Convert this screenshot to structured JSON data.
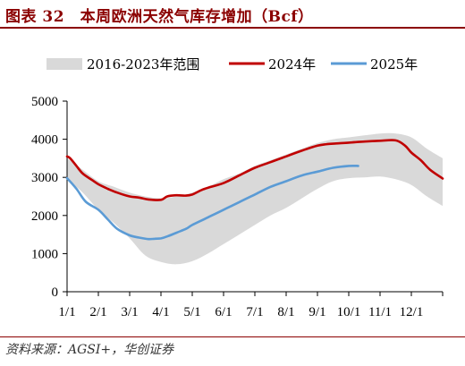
{
  "page": {
    "title": "图表 32　本周欧洲天然气库存增加（Bcf）",
    "source": "资料来源：AGSI+，华创证券"
  },
  "colors": {
    "title": "#8b0000",
    "band": "#d9d9d9",
    "series_2024": "#c00000",
    "series_2025": "#5b9bd5"
  },
  "chart_data": {
    "type": "line",
    "ylim": [
      0,
      5000
    ],
    "yticks": [
      0,
      1000,
      2000,
      3000,
      4000,
      5000
    ],
    "xlim": [
      0,
      12
    ],
    "xtick_labels": [
      "1/1",
      "2/1",
      "3/1",
      "4/1",
      "5/1",
      "6/1",
      "7/1",
      "8/1",
      "9/1",
      "10/1",
      "11/1",
      "12/1"
    ],
    "legend": {
      "position": "top",
      "entries": [
        "2016-2023年范围",
        "2024年",
        "2025年"
      ]
    },
    "band": {
      "name": "2016-2023年范围",
      "x": [
        0,
        0.5,
        1,
        1.5,
        2,
        2.5,
        3,
        3.5,
        4,
        4.5,
        5,
        5.5,
        6,
        6.5,
        7,
        7.5,
        8,
        8.5,
        9,
        9.5,
        10,
        10.5,
        11,
        11.5,
        12
      ],
      "upper": [
        3500,
        3200,
        2900,
        2750,
        2600,
        2500,
        2450,
        2500,
        2600,
        2750,
        2950,
        3100,
        3300,
        3450,
        3600,
        3750,
        3900,
        4000,
        4050,
        4100,
        4150,
        4150,
        4050,
        3750,
        3500
      ],
      "lower": [
        2950,
        2600,
        2150,
        1800,
        1400,
        950,
        780,
        720,
        800,
        1000,
        1250,
        1500,
        1750,
        2000,
        2200,
        2450,
        2700,
        2900,
        2980,
        3000,
        3020,
        2950,
        2800,
        2500,
        2250
      ]
    },
    "series": [
      {
        "name": "2024年",
        "x": [
          0,
          0.1,
          0.3,
          0.5,
          0.8,
          1,
          1.3,
          1.6,
          2,
          2.3,
          2.6,
          3,
          3.2,
          3.5,
          3.8,
          4,
          4.3,
          4.6,
          5,
          5.5,
          6,
          6.5,
          7,
          7.5,
          8,
          8.3,
          8.6,
          9,
          9.5,
          10,
          10.5,
          10.8,
          11,
          11.3,
          11.6,
          12
        ],
        "y": [
          3550,
          3500,
          3300,
          3100,
          2930,
          2820,
          2700,
          2600,
          2500,
          2470,
          2420,
          2410,
          2500,
          2530,
          2520,
          2550,
          2670,
          2750,
          2850,
          3050,
          3250,
          3400,
          3550,
          3700,
          3830,
          3870,
          3890,
          3910,
          3940,
          3960,
          3970,
          3830,
          3650,
          3450,
          3200,
          2970
        ]
      },
      {
        "name": "2025年",
        "x": [
          0,
          0.3,
          0.6,
          1,
          1.3,
          1.6,
          2,
          2.3,
          2.6,
          2.8,
          3,
          3.2,
          3.5,
          3.8,
          4,
          4.5,
          5,
          5.5,
          6,
          6.5,
          7,
          7.5,
          8,
          8.5,
          9,
          9.3
        ],
        "y": [
          2980,
          2700,
          2360,
          2150,
          1900,
          1650,
          1480,
          1420,
          1380,
          1390,
          1400,
          1450,
          1550,
          1650,
          1750,
          1950,
          2150,
          2350,
          2550,
          2750,
          2900,
          3050,
          3150,
          3250,
          3300,
          3300
        ]
      }
    ]
  }
}
